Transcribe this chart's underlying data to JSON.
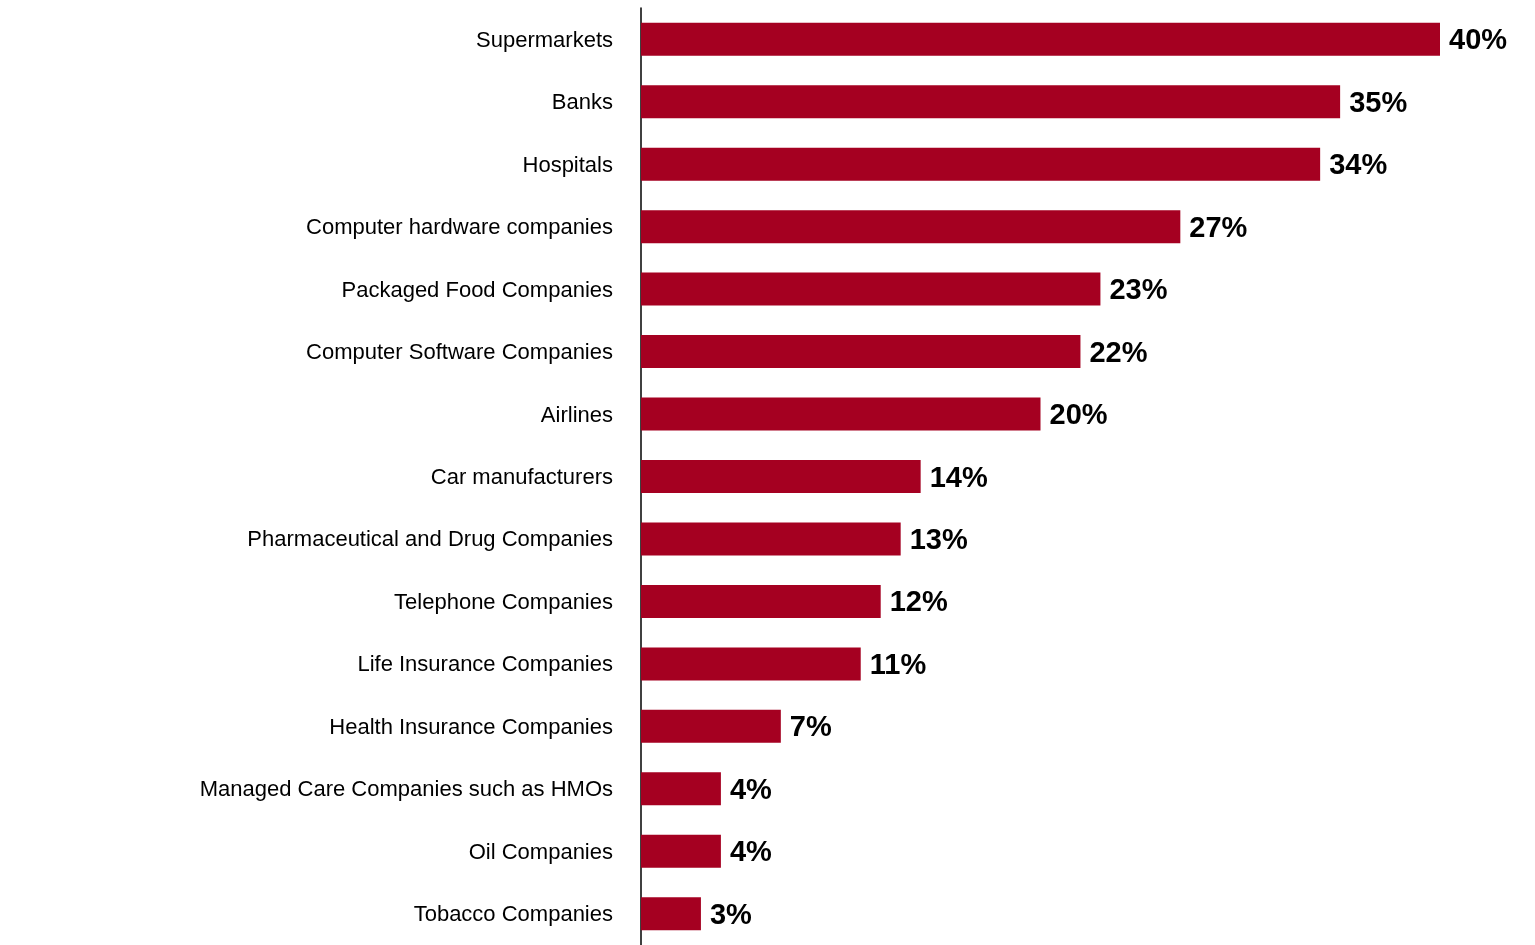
{
  "chart_data": {
    "type": "bar",
    "orientation": "horizontal",
    "categories": [
      "Supermarkets",
      "Banks",
      "Hospitals",
      "Computer hardware companies",
      "Packaged Food Companies",
      "Computer Software Companies",
      "Airlines",
      "Car manufacturers",
      "Pharmaceutical and Drug Companies",
      "Telephone Companies",
      "Life Insurance Companies",
      "Health Insurance Companies",
      "Managed Care Companies such as HMOs",
      "Oil Companies",
      "Tobacco Companies"
    ],
    "values": [
      40,
      35,
      34,
      27,
      23,
      22,
      20,
      14,
      13,
      12,
      11,
      7,
      4,
      4,
      3
    ],
    "value_labels": [
      "40%",
      "35%",
      "34%",
      "27%",
      "23%",
      "22%",
      "20%",
      "14%",
      "13%",
      "12%",
      "11%",
      "7%",
      "4%",
      "4%",
      "3%"
    ],
    "color": "#a50021"
  }
}
